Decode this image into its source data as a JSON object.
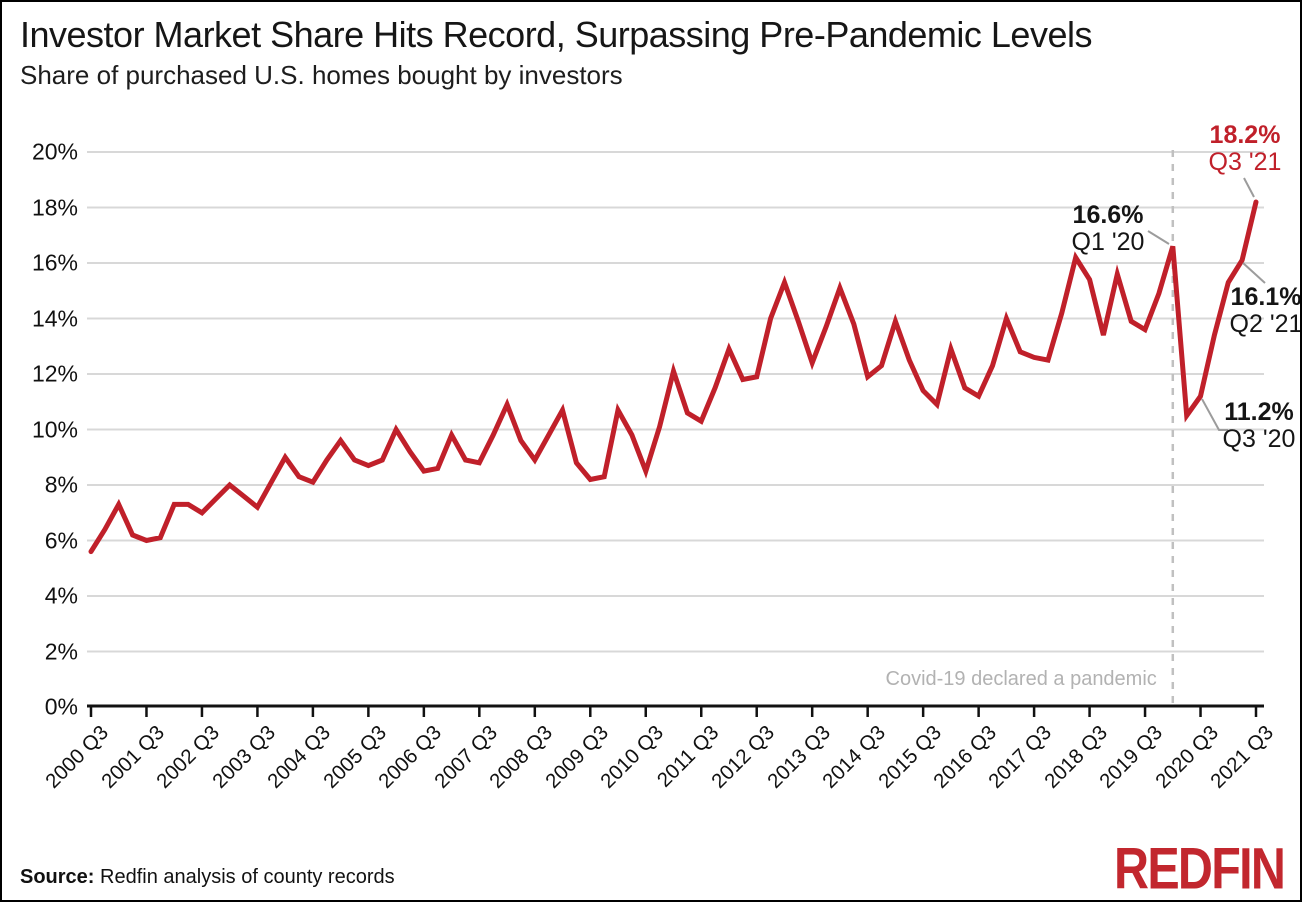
{
  "title": "Investor Market Share Hits Record, Surpassing Pre-Pandemic Levels",
  "subtitle": "Share of purchased U.S. homes bought by investors",
  "source": {
    "label": "Source:",
    "text": " Redfin analysis of county records"
  },
  "logo_text": "REDFIN",
  "colors": {
    "line": "#c0202a",
    "accent_red": "#c0202a",
    "grid": "#d8d8d8",
    "axis": "#111111",
    "dashed_line": "#c0c0c0",
    "leader": "#9c9c9c",
    "muted_text": "#b2b2b2",
    "logo_red": "#c2272e"
  },
  "chart_data": {
    "type": "line",
    "title": "Investor Market Share Hits Record, Surpassing Pre-Pandemic Levels",
    "subtitle": "Share of purchased U.S. homes bought by investors",
    "ylabel": "",
    "xlabel": "",
    "ylim": [
      0,
      20
    ],
    "grid": "horizontal",
    "frequency": "quarterly",
    "y_tick_labels": [
      "0%",
      "2%",
      "4%",
      "6%",
      "8%",
      "10%",
      "12%",
      "14%",
      "16%",
      "18%",
      "20%"
    ],
    "x_tick_labels": [
      "2000 Q3",
      "2001 Q3",
      "2002 Q3",
      "2003 Q3",
      "2004 Q3",
      "2005 Q3",
      "2006 Q3",
      "2007 Q3",
      "2008 Q3",
      "2009 Q3",
      "2010 Q3",
      "2011 Q3",
      "2012 Q3",
      "2013 Q3",
      "2014 Q3",
      "2015 Q3",
      "2016 Q3",
      "2017 Q3",
      "2018 Q3",
      "2019 Q3",
      "2020 Q3",
      "2021 Q3"
    ],
    "x": [
      "2000 Q3",
      "2000 Q4",
      "2001 Q1",
      "2001 Q2",
      "2001 Q3",
      "2001 Q4",
      "2002 Q1",
      "2002 Q2",
      "2002 Q3",
      "2002 Q4",
      "2003 Q1",
      "2003 Q2",
      "2003 Q3",
      "2003 Q4",
      "2004 Q1",
      "2004 Q2",
      "2004 Q3",
      "2004 Q4",
      "2005 Q1",
      "2005 Q2",
      "2005 Q3",
      "2005 Q4",
      "2006 Q1",
      "2006 Q2",
      "2006 Q3",
      "2006 Q4",
      "2007 Q1",
      "2007 Q2",
      "2007 Q3",
      "2007 Q4",
      "2008 Q1",
      "2008 Q2",
      "2008 Q3",
      "2008 Q4",
      "2009 Q1",
      "2009 Q2",
      "2009 Q3",
      "2009 Q4",
      "2010 Q1",
      "2010 Q2",
      "2010 Q3",
      "2010 Q4",
      "2011 Q1",
      "2011 Q2",
      "2011 Q3",
      "2011 Q4",
      "2012 Q1",
      "2012 Q2",
      "2012 Q3",
      "2012 Q4",
      "2013 Q1",
      "2013 Q2",
      "2013 Q3",
      "2013 Q4",
      "2014 Q1",
      "2014 Q2",
      "2014 Q3",
      "2014 Q4",
      "2015 Q1",
      "2015 Q2",
      "2015 Q3",
      "2015 Q4",
      "2016 Q1",
      "2016 Q2",
      "2016 Q3",
      "2016 Q4",
      "2017 Q1",
      "2017 Q2",
      "2017 Q3",
      "2017 Q4",
      "2018 Q1",
      "2018 Q2",
      "2018 Q3",
      "2018 Q4",
      "2019 Q1",
      "2019 Q2",
      "2019 Q3",
      "2019 Q4",
      "2020 Q1",
      "2020 Q2",
      "2020 Q3",
      "2020 Q4",
      "2021 Q1",
      "2021 Q2",
      "2021 Q3"
    ],
    "values": [
      5.6,
      6.4,
      7.3,
      6.2,
      6.0,
      6.1,
      7.3,
      7.3,
      7.0,
      7.5,
      8.0,
      7.6,
      7.2,
      8.1,
      9.0,
      8.3,
      8.1,
      8.9,
      9.6,
      8.9,
      8.7,
      8.9,
      10.0,
      9.2,
      8.5,
      8.6,
      9.8,
      8.9,
      8.8,
      9.8,
      10.9,
      9.6,
      8.9,
      9.8,
      10.7,
      8.8,
      8.2,
      8.3,
      10.7,
      9.8,
      8.5,
      10.1,
      12.1,
      10.6,
      10.3,
      11.5,
      12.9,
      11.8,
      11.9,
      14.0,
      15.3,
      13.9,
      12.4,
      13.7,
      15.1,
      13.8,
      11.9,
      12.3,
      13.9,
      12.5,
      11.4,
      10.9,
      12.9,
      11.5,
      11.2,
      12.3,
      14.0,
      12.8,
      12.6,
      12.5,
      14.2,
      16.2,
      15.4,
      13.4,
      15.6,
      13.9,
      13.6,
      14.9,
      16.6,
      10.5,
      11.2,
      13.4,
      15.3,
      16.1,
      18.2
    ],
    "event_line": {
      "label": "Covid-19 declared a pandemic",
      "x": "2020 Q1",
      "point_index": 78
    },
    "annotations": [
      {
        "value": "16.6%",
        "quarter": "Q1 '20",
        "point_index": 78,
        "color": "black"
      },
      {
        "value": "11.2%",
        "quarter": "Q3 '20",
        "point_index": 80,
        "color": "black"
      },
      {
        "value": "16.1%",
        "quarter": "Q2 '21",
        "point_index": 83,
        "color": "black"
      },
      {
        "value": "18.2%",
        "quarter": "Q3 '21",
        "point_index": 84,
        "color": "red"
      }
    ],
    "legend": "none"
  }
}
